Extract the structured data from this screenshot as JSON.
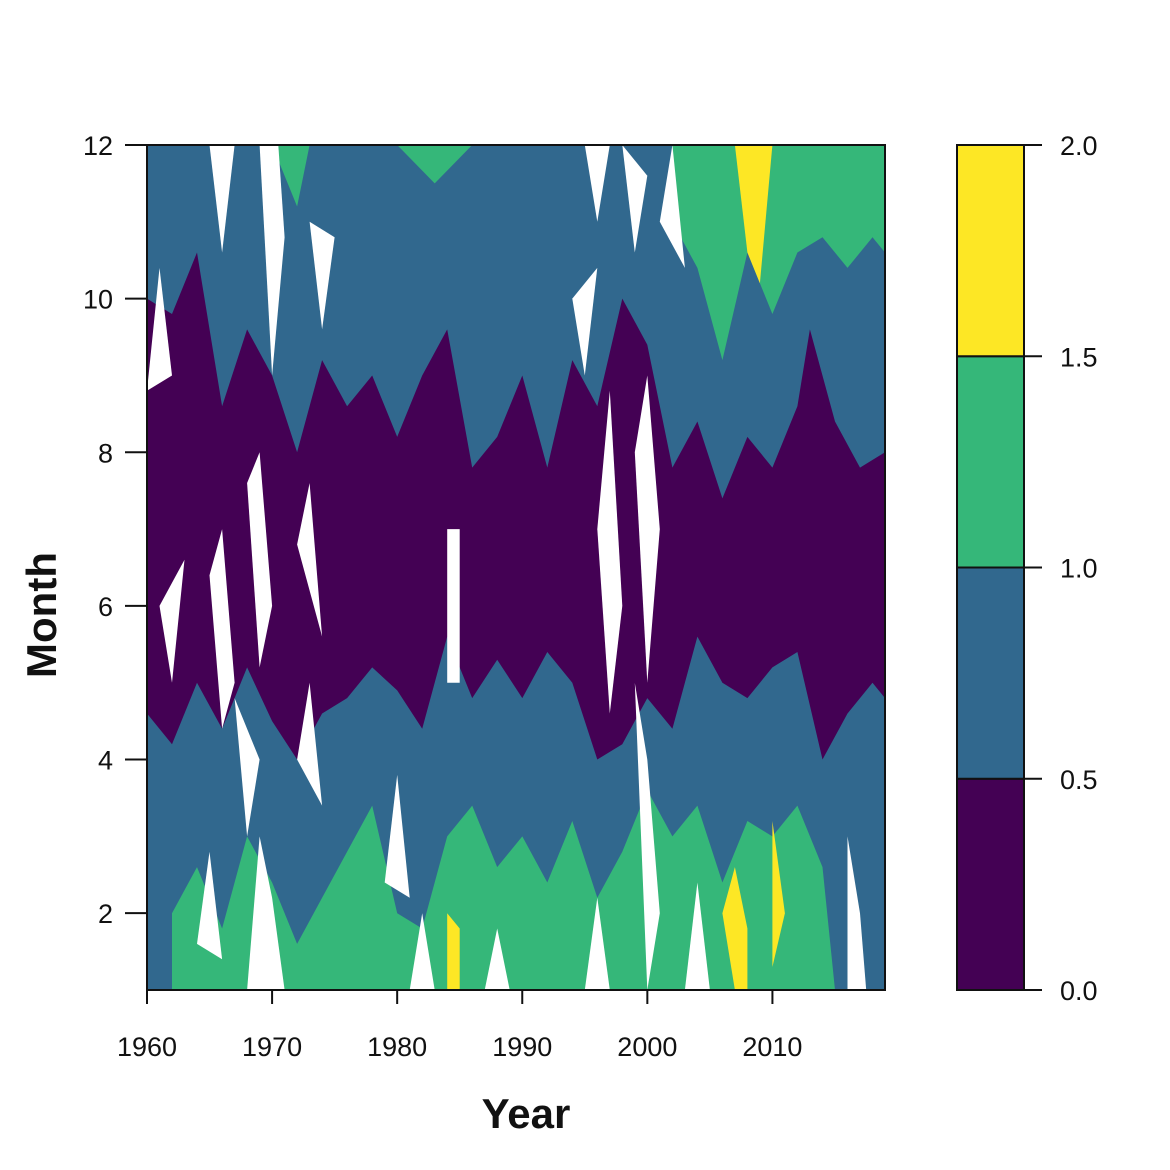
{
  "chart_data": {
    "type": "heatmap",
    "subtype": "filled-contour",
    "title": "",
    "xlabel": "Year",
    "ylabel": "Month",
    "xlim": [
      1960,
      2019
    ],
    "ylim": [
      1,
      12
    ],
    "x_ticks": [
      "1960",
      "1970",
      "1980",
      "1990",
      "2000",
      "2010"
    ],
    "y_ticks": [
      "2",
      "4",
      "6",
      "8",
      "10",
      "12"
    ],
    "levels": [
      0.0,
      0.5,
      1.0,
      1.5,
      2.0
    ],
    "level_labels": [
      "0.0",
      "0.5",
      "1.0",
      "1.5",
      "2.0"
    ],
    "colors": [
      "#440154",
      "#31688e",
      "#35b779",
      "#fde725"
    ],
    "missing_color": "#ffffff",
    "legend_position": "right",
    "regions": [
      {
        "level": 0,
        "points": [
          [
            1960,
            4.6
          ],
          [
            1962,
            4.2
          ],
          [
            1964,
            5.0
          ],
          [
            1966,
            4.4
          ],
          [
            1968,
            5.2
          ],
          [
            1970,
            4.5
          ],
          [
            1972,
            4.0
          ],
          [
            1974,
            4.6
          ],
          [
            1976,
            4.8
          ],
          [
            1978,
            5.2
          ],
          [
            1980,
            4.9
          ],
          [
            1982,
            4.4
          ],
          [
            1984,
            5.6
          ],
          [
            1986,
            4.8
          ],
          [
            1988,
            5.3
          ],
          [
            1990,
            4.8
          ],
          [
            1992,
            5.4
          ],
          [
            1994,
            5.0
          ],
          [
            1996,
            4.0
          ],
          [
            1998,
            4.2
          ],
          [
            2000,
            4.8
          ],
          [
            2002,
            4.4
          ],
          [
            2004,
            5.6
          ],
          [
            2006,
            5.0
          ],
          [
            2008,
            4.8
          ],
          [
            2010,
            5.2
          ],
          [
            2012,
            5.4
          ],
          [
            2014,
            4.0
          ],
          [
            2016,
            4.6
          ],
          [
            2018,
            5.0
          ],
          [
            2019,
            4.8
          ],
          [
            2019,
            8.0
          ],
          [
            2017,
            7.8
          ],
          [
            2015,
            8.4
          ],
          [
            2013,
            9.6
          ],
          [
            2012,
            8.6
          ],
          [
            2010,
            7.8
          ],
          [
            2008,
            8.2
          ],
          [
            2006,
            7.4
          ],
          [
            2004,
            8.4
          ],
          [
            2002,
            7.8
          ],
          [
            2000,
            9.4
          ],
          [
            1998,
            10.0
          ],
          [
            1996,
            8.6
          ],
          [
            1994,
            9.2
          ],
          [
            1992,
            7.8
          ],
          [
            1990,
            9.0
          ],
          [
            1988,
            8.2
          ],
          [
            1986,
            7.8
          ],
          [
            1984,
            9.6
          ],
          [
            1982,
            9.0
          ],
          [
            1980,
            8.2
          ],
          [
            1978,
            9.0
          ],
          [
            1976,
            8.6
          ],
          [
            1974,
            9.2
          ],
          [
            1972,
            8.0
          ],
          [
            1970,
            9.0
          ],
          [
            1968,
            9.6
          ],
          [
            1966,
            8.6
          ],
          [
            1964,
            10.6
          ],
          [
            1962,
            9.8
          ],
          [
            1960,
            10.0
          ]
        ]
      },
      {
        "level": 2,
        "points": [
          [
            1962,
            1.0
          ],
          [
            1962,
            2.0
          ],
          [
            1964,
            2.6
          ],
          [
            1966,
            1.8
          ],
          [
            1968,
            3.0
          ],
          [
            1970,
            2.4
          ],
          [
            1972,
            1.6
          ],
          [
            1974,
            2.2
          ],
          [
            1976,
            2.8
          ],
          [
            1978,
            3.4
          ],
          [
            1980,
            2.0
          ],
          [
            1982,
            1.8
          ],
          [
            1984,
            3.0
          ],
          [
            1986,
            3.4
          ],
          [
            1988,
            2.6
          ],
          [
            1990,
            3.0
          ],
          [
            1992,
            2.4
          ],
          [
            1994,
            3.2
          ],
          [
            1996,
            2.2
          ],
          [
            1998,
            2.8
          ],
          [
            2000,
            3.6
          ],
          [
            2002,
            3.0
          ],
          [
            2004,
            3.4
          ],
          [
            2006,
            2.4
          ],
          [
            2008,
            3.2
          ],
          [
            2010,
            3.0
          ],
          [
            2012,
            3.4
          ],
          [
            2014,
            2.6
          ],
          [
            2015,
            1.0
          ]
        ]
      },
      {
        "level": 2,
        "points": [
          [
            2002,
            12.0
          ],
          [
            2002,
            11.0
          ],
          [
            2004,
            10.4
          ],
          [
            2006,
            9.2
          ],
          [
            2008,
            10.6
          ],
          [
            2010,
            9.8
          ],
          [
            2012,
            10.6
          ],
          [
            2014,
            10.8
          ],
          [
            2016,
            10.4
          ],
          [
            2018,
            10.8
          ],
          [
            2019,
            10.6
          ],
          [
            2019,
            12.0
          ]
        ]
      },
      {
        "level": 2,
        "points": [
          [
            1970,
            12.0
          ],
          [
            1972,
            11.2
          ],
          [
            1973,
            12.0
          ]
        ]
      },
      {
        "level": 2,
        "points": [
          [
            1980,
            12.0
          ],
          [
            1983,
            11.5
          ],
          [
            1986,
            12.0
          ]
        ]
      },
      {
        "level": 3,
        "points": [
          [
            2007,
            12.0
          ],
          [
            2008,
            10.6
          ],
          [
            2009,
            10.2
          ],
          [
            2010,
            12.0
          ]
        ]
      },
      {
        "level": 3,
        "points": [
          [
            2006,
            2.0
          ],
          [
            2007,
            2.6
          ],
          [
            2008,
            1.8
          ],
          [
            2008,
            1.0
          ],
          [
            2007,
            1.0
          ]
        ]
      },
      {
        "level": 3,
        "points": [
          [
            2010,
            2.2
          ],
          [
            2010,
            3.2
          ],
          [
            2011,
            2.0
          ],
          [
            2010,
            1.3
          ]
        ]
      },
      {
        "level": 3,
        "points": [
          [
            1984,
            1.0
          ],
          [
            1984,
            2.0
          ],
          [
            1985,
            1.8
          ],
          [
            1985,
            1.0
          ]
        ]
      },
      {
        "level": "missing",
        "points": [
          [
            1965,
            12.0
          ],
          [
            1966,
            10.6
          ],
          [
            1967,
            12.0
          ]
        ]
      },
      {
        "level": "missing",
        "points": [
          [
            1969,
            12.0
          ],
          [
            1970,
            9.0
          ],
          [
            1971,
            10.8
          ],
          [
            1970.5,
            12.0
          ]
        ]
      },
      {
        "level": "missing",
        "points": [
          [
            1973,
            11.0
          ],
          [
            1974,
            9.6
          ],
          [
            1975,
            10.8
          ]
        ]
      },
      {
        "level": "missing",
        "points": [
          [
            1960,
            8.8
          ],
          [
            1961,
            10.4
          ],
          [
            1962,
            9.0
          ]
        ]
      },
      {
        "level": "missing",
        "points": [
          [
            1961,
            6.0
          ],
          [
            1962,
            5.0
          ],
          [
            1963,
            6.6
          ]
        ]
      },
      {
        "level": "missing",
        "points": [
          [
            1965,
            6.4
          ],
          [
            1966,
            7.0
          ],
          [
            1967,
            5.0
          ],
          [
            1966,
            4.4
          ]
        ]
      },
      {
        "level": "missing",
        "points": [
          [
            1968,
            7.6
          ],
          [
            1969,
            8.0
          ],
          [
            1970,
            6.0
          ],
          [
            1969,
            5.2
          ]
        ]
      },
      {
        "level": "missing",
        "points": [
          [
            1972,
            6.8
          ],
          [
            1973,
            7.6
          ],
          [
            1974,
            5.6
          ]
        ]
      },
      {
        "level": "missing",
        "points": [
          [
            1967,
            4.8
          ],
          [
            1968,
            3.0
          ],
          [
            1969,
            4.0
          ]
        ]
      },
      {
        "level": "missing",
        "points": [
          [
            1972,
            4.0
          ],
          [
            1973,
            5.0
          ],
          [
            1974,
            3.4
          ]
        ]
      },
      {
        "level": "missing",
        "points": [
          [
            1984,
            5.0
          ],
          [
            1984,
            7.0
          ],
          [
            1985,
            7.0
          ],
          [
            1985,
            5.0
          ]
        ]
      },
      {
        "level": "missing",
        "points": [
          [
            1995,
            12.0
          ],
          [
            1996,
            11.0
          ],
          [
            1997,
            12.0
          ]
        ]
      },
      {
        "level": "missing",
        "points": [
          [
            1994,
            10.0
          ],
          [
            1995,
            9.0
          ],
          [
            1996,
            10.4
          ]
        ]
      },
      {
        "level": "missing",
        "points": [
          [
            1996,
            7.0
          ],
          [
            1997,
            8.8
          ],
          [
            1998,
            6.0
          ],
          [
            1997,
            4.6
          ]
        ]
      },
      {
        "level": "missing",
        "points": [
          [
            1999,
            8.0
          ],
          [
            2000,
            9.0
          ],
          [
            2001,
            7.0
          ],
          [
            2000,
            5.0
          ]
        ]
      },
      {
        "level": "missing",
        "points": [
          [
            1998,
            12.0
          ],
          [
            1999,
            10.6
          ],
          [
            2000,
            11.6
          ]
        ]
      },
      {
        "level": "missing",
        "points": [
          [
            2001,
            11.0
          ],
          [
            2002,
            12.0
          ],
          [
            2003,
            10.4
          ]
        ]
      },
      {
        "level": "missing",
        "points": [
          [
            1999,
            5.0
          ],
          [
            2000,
            4.0
          ],
          [
            2001,
            2.0
          ],
          [
            2000,
            1.0
          ]
        ]
      },
      {
        "level": "missing",
        "points": [
          [
            1968,
            1.0
          ],
          [
            1969,
            3.0
          ],
          [
            1970,
            2.2
          ],
          [
            1971,
            1.0
          ]
        ]
      },
      {
        "level": "missing",
        "points": [
          [
            1964,
            1.6
          ],
          [
            1965,
            2.8
          ],
          [
            1966,
            1.4
          ]
        ]
      },
      {
        "level": "missing",
        "points": [
          [
            1979,
            2.4
          ],
          [
            1980,
            3.8
          ],
          [
            1981,
            2.2
          ]
        ]
      },
      {
        "level": "missing",
        "points": [
          [
            1981,
            1.0
          ],
          [
            1982,
            2.0
          ],
          [
            1983,
            1.0
          ]
        ]
      },
      {
        "level": "missing",
        "points": [
          [
            1987,
            1.0
          ],
          [
            1988,
            1.8
          ],
          [
            1989,
            1.0
          ]
        ]
      },
      {
        "level": "missing",
        "points": [
          [
            1995,
            1.0
          ],
          [
            1996,
            2.2
          ],
          [
            1997,
            1.0
          ]
        ]
      },
      {
        "level": "missing",
        "points": [
          [
            2003,
            1.0
          ],
          [
            2004,
            2.4
          ],
          [
            2005,
            1.0
          ]
        ]
      },
      {
        "level": "missing",
        "points": [
          [
            2016,
            1.0
          ],
          [
            2016,
            3.0
          ],
          [
            2017,
            2.0
          ],
          [
            2017.5,
            1.0
          ]
        ]
      }
    ]
  }
}
